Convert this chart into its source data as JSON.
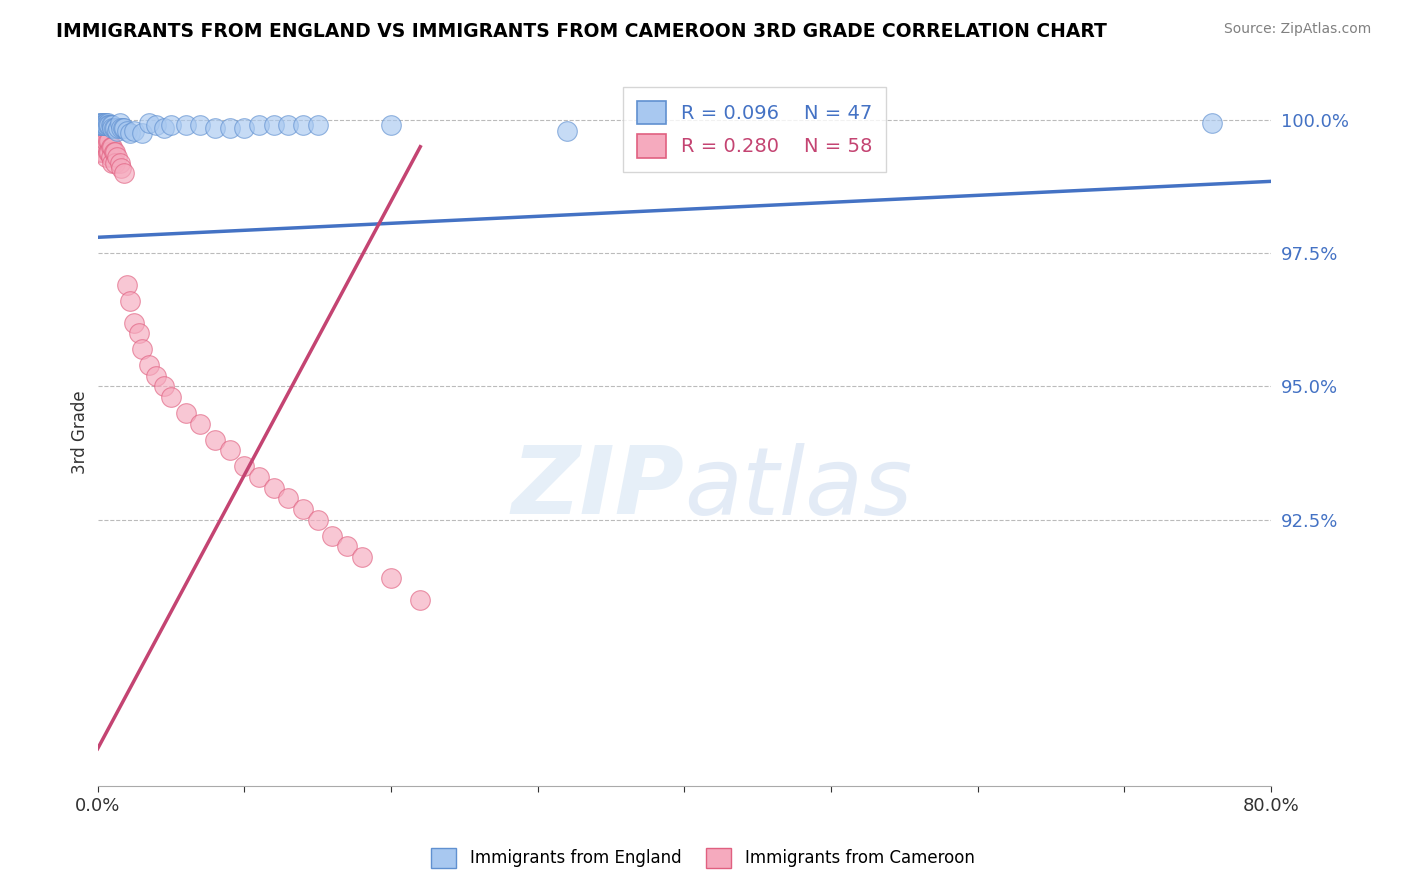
{
  "title": "IMMIGRANTS FROM ENGLAND VS IMMIGRANTS FROM CAMEROON 3RD GRADE CORRELATION CHART",
  "source": "Source: ZipAtlas.com",
  "ylabel": "3rd Grade",
  "xlim": [
    0.0,
    0.8
  ],
  "ylim": [
    0.875,
    1.008
  ],
  "yticks": [
    0.925,
    0.95,
    0.975,
    1.0
  ],
  "ytick_labels": [
    "92.5%",
    "95.0%",
    "97.5%",
    "100.0%"
  ],
  "xticks": [
    0.0,
    0.1,
    0.2,
    0.3,
    0.4,
    0.5,
    0.6,
    0.7,
    0.8
  ],
  "xtick_labels": [
    "0.0%",
    "",
    "",
    "",
    "",
    "",
    "",
    "",
    "80.0%"
  ],
  "england_color": "#A8C8F0",
  "cameroon_color": "#F5AABE",
  "england_edge_color": "#6090D0",
  "cameroon_edge_color": "#E06080",
  "england_label": "Immigrants from England",
  "cameroon_label": "Immigrants from Cameroon",
  "england_R": 0.096,
  "england_N": 47,
  "cameroon_R": 0.28,
  "cameroon_N": 58,
  "england_trend_color": "#4472C4",
  "cameroon_trend_color": "#C44472",
  "england_trend_x": [
    0.0,
    0.8
  ],
  "england_trend_y": [
    0.978,
    0.9885
  ],
  "cameroon_trend_x": [
    0.0,
    0.22
  ],
  "cameroon_trend_y": [
    0.882,
    0.995
  ],
  "england_scatter_x": [
    0.001,
    0.001,
    0.002,
    0.002,
    0.003,
    0.003,
    0.004,
    0.004,
    0.005,
    0.005,
    0.006,
    0.006,
    0.007,
    0.007,
    0.008,
    0.009,
    0.01,
    0.01,
    0.011,
    0.012,
    0.013,
    0.014,
    0.015,
    0.016,
    0.017,
    0.018,
    0.02,
    0.022,
    0.025,
    0.03,
    0.035,
    0.04,
    0.045,
    0.05,
    0.06,
    0.07,
    0.08,
    0.09,
    0.1,
    0.11,
    0.12,
    0.13,
    0.14,
    0.15,
    0.2,
    0.32,
    0.76
  ],
  "england_scatter_y": [
    0.9995,
    0.999,
    0.9995,
    0.999,
    0.9995,
    0.999,
    0.9995,
    0.999,
    0.9995,
    0.999,
    0.9995,
    0.999,
    0.9995,
    0.999,
    0.999,
    0.999,
    0.999,
    0.9985,
    0.9985,
    0.9985,
    0.998,
    0.9985,
    0.9995,
    0.9985,
    0.9985,
    0.9985,
    0.998,
    0.9975,
    0.998,
    0.9975,
    0.9995,
    0.999,
    0.9985,
    0.999,
    0.999,
    0.999,
    0.9985,
    0.9985,
    0.9985,
    0.999,
    0.999,
    0.999,
    0.999,
    0.999,
    0.999,
    0.998,
    0.9995
  ],
  "cameroon_scatter_x": [
    0.001,
    0.001,
    0.001,
    0.001,
    0.002,
    0.002,
    0.002,
    0.003,
    0.003,
    0.003,
    0.003,
    0.004,
    0.004,
    0.004,
    0.005,
    0.005,
    0.006,
    0.006,
    0.006,
    0.007,
    0.007,
    0.008,
    0.008,
    0.009,
    0.009,
    0.01,
    0.01,
    0.011,
    0.012,
    0.012,
    0.013,
    0.015,
    0.016,
    0.018,
    0.02,
    0.022,
    0.025,
    0.028,
    0.03,
    0.035,
    0.04,
    0.045,
    0.05,
    0.06,
    0.07,
    0.08,
    0.09,
    0.1,
    0.11,
    0.12,
    0.13,
    0.14,
    0.15,
    0.16,
    0.17,
    0.18,
    0.2,
    0.22
  ],
  "cameroon_scatter_y": [
    0.998,
    0.997,
    0.996,
    0.994,
    0.998,
    0.997,
    0.995,
    0.998,
    0.997,
    0.996,
    0.994,
    0.998,
    0.996,
    0.994,
    0.997,
    0.995,
    0.997,
    0.996,
    0.993,
    0.996,
    0.994,
    0.996,
    0.994,
    0.995,
    0.993,
    0.995,
    0.992,
    0.994,
    0.994,
    0.992,
    0.993,
    0.992,
    0.991,
    0.99,
    0.969,
    0.966,
    0.962,
    0.96,
    0.957,
    0.954,
    0.952,
    0.95,
    0.948,
    0.945,
    0.943,
    0.94,
    0.938,
    0.935,
    0.933,
    0.931,
    0.929,
    0.927,
    0.925,
    0.922,
    0.92,
    0.918,
    0.914,
    0.91
  ]
}
